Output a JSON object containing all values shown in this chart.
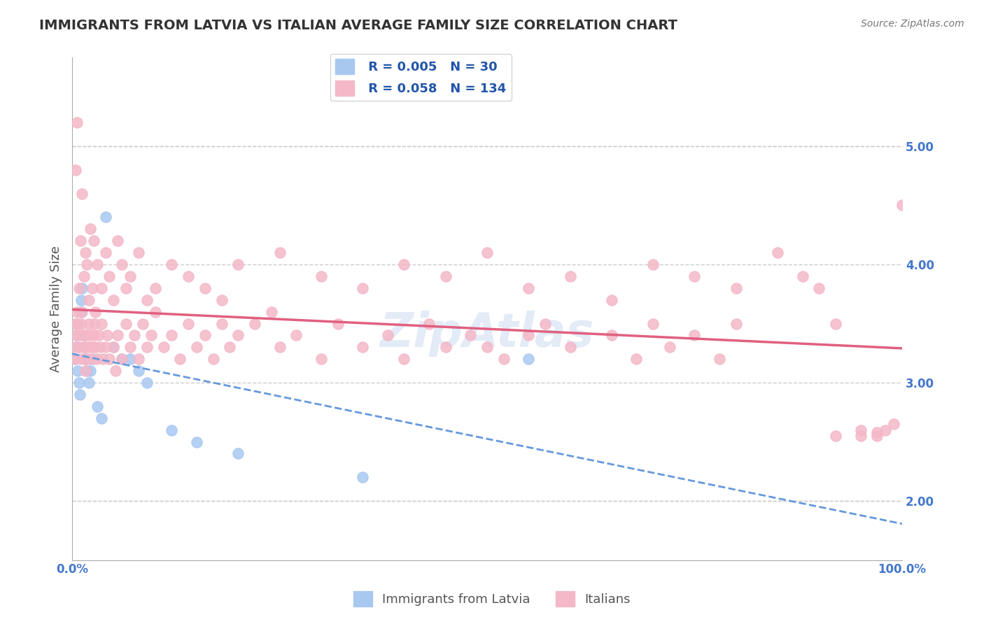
{
  "title": "IMMIGRANTS FROM LATVIA VS ITALIAN AVERAGE FAMILY SIZE CORRELATION CHART",
  "source": "Source: ZipAtlas.com",
  "xlabel": "",
  "ylabel": "Average Family Size",
  "xlim": [
    0,
    100
  ],
  "ylim": [
    1.5,
    5.75
  ],
  "yticks": [
    2.0,
    3.0,
    4.0,
    5.0
  ],
  "xtick_labels": [
    "0.0%",
    "100.0%"
  ],
  "series": [
    {
      "label": "Immigrants from Latvia",
      "R": 0.005,
      "N": 30,
      "color": "#a8c8f0",
      "line_color": "#4477cc",
      "line_style": "-",
      "x": [
        0.3,
        0.4,
        0.5,
        0.6,
        0.7,
        0.8,
        0.9,
        1.0,
        1.1,
        1.2,
        1.4,
        1.5,
        1.6,
        1.8,
        2.0,
        2.2,
        2.5,
        3.0,
        3.5,
        4.0,
        5.0,
        6.0,
        7.0,
        8.0,
        9.0,
        12.0,
        15.0,
        20.0,
        35.0,
        55.0
      ],
      "y": [
        3.2,
        3.5,
        3.4,
        3.3,
        3.1,
        3.0,
        2.9,
        3.6,
        3.7,
        3.8,
        3.4,
        3.3,
        3.2,
        3.1,
        3.0,
        3.1,
        3.2,
        2.8,
        2.7,
        4.4,
        3.3,
        3.2,
        3.2,
        3.1,
        3.0,
        2.6,
        2.5,
        2.4,
        2.2,
        3.2
      ]
    },
    {
      "label": "Italians",
      "R": 0.058,
      "N": 134,
      "color": "#f4b8c8",
      "line_color": "#e06080",
      "line_style": "-",
      "x": [
        0.2,
        0.3,
        0.4,
        0.5,
        0.6,
        0.7,
        0.8,
        0.9,
        1.0,
        1.1,
        1.2,
        1.3,
        1.4,
        1.5,
        1.6,
        1.7,
        1.8,
        1.9,
        2.0,
        2.1,
        2.2,
        2.3,
        2.5,
        2.6,
        2.7,
        2.8,
        3.0,
        3.2,
        3.4,
        3.5,
        3.7,
        4.0,
        4.2,
        4.5,
        5.0,
        5.2,
        5.5,
        6.0,
        6.5,
        7.0,
        7.5,
        8.0,
        8.5,
        9.0,
        9.5,
        10.0,
        11.0,
        12.0,
        13.0,
        14.0,
        15.0,
        16.0,
        17.0,
        18.0,
        19.0,
        20.0,
        22.0,
        24.0,
        25.0,
        27.0,
        30.0,
        32.0,
        35.0,
        38.0,
        40.0,
        43.0,
        45.0,
        48.0,
        50.0,
        52.0,
        55.0,
        57.0,
        60.0,
        65.0,
        68.0,
        70.0,
        72.0,
        75.0,
        78.0,
        80.0,
        0.4,
        0.6,
        0.8,
        1.0,
        1.2,
        1.4,
        1.6,
        1.8,
        2.0,
        2.2,
        2.4,
        2.6,
        2.8,
        3.0,
        3.5,
        4.0,
        4.5,
        5.0,
        5.5,
        6.0,
        6.5,
        7.0,
        8.0,
        9.0,
        10.0,
        12.0,
        14.0,
        16.0,
        18.0,
        20.0,
        25.0,
        30.0,
        35.0,
        40.0,
        45.0,
        50.0,
        55.0,
        60.0,
        65.0,
        70.0,
        75.0,
        80.0,
        85.0,
        88.0,
        90.0,
        92.0,
        95.0,
        97.0,
        99.0,
        100.0,
        95.0,
        98.0,
        92.0,
        97.0
      ],
      "y": [
        3.3,
        3.2,
        3.5,
        3.4,
        3.6,
        3.5,
        3.3,
        3.4,
        3.2,
        3.5,
        3.6,
        3.3,
        3.4,
        3.2,
        3.1,
        3.3,
        3.4,
        3.2,
        3.5,
        3.3,
        3.4,
        3.2,
        3.3,
        3.4,
        3.5,
        3.3,
        3.2,
        3.4,
        3.3,
        3.5,
        3.2,
        3.3,
        3.4,
        3.2,
        3.3,
        3.1,
        3.4,
        3.2,
        3.5,
        3.3,
        3.4,
        3.2,
        3.5,
        3.3,
        3.4,
        3.6,
        3.3,
        3.4,
        3.2,
        3.5,
        3.3,
        3.4,
        3.2,
        3.5,
        3.3,
        3.4,
        3.5,
        3.6,
        3.3,
        3.4,
        3.2,
        3.5,
        3.3,
        3.4,
        3.2,
        3.5,
        3.3,
        3.4,
        3.3,
        3.2,
        3.4,
        3.5,
        3.3,
        3.4,
        3.2,
        3.5,
        3.3,
        3.4,
        3.2,
        3.5,
        4.8,
        5.2,
        3.8,
        4.2,
        4.6,
        3.9,
        4.1,
        4.0,
        3.7,
        4.3,
        3.8,
        4.2,
        3.6,
        4.0,
        3.8,
        4.1,
        3.9,
        3.7,
        4.2,
        4.0,
        3.8,
        3.9,
        4.1,
        3.7,
        3.8,
        4.0,
        3.9,
        3.8,
        3.7,
        4.0,
        4.1,
        3.9,
        3.8,
        4.0,
        3.9,
        4.1,
        3.8,
        3.9,
        3.7,
        4.0,
        3.9,
        3.8,
        4.1,
        3.9,
        3.8,
        3.5,
        2.6,
        2.55,
        2.65,
        4.5,
        2.55,
        2.6,
        2.55,
        2.58
      ]
    }
  ],
  "grid_color": "#cccccc",
  "grid_style": "--",
  "background_color": "#ffffff",
  "title_color": "#333333",
  "axis_label_color": "#555555",
  "tick_color": "#4477cc",
  "source_color": "#777777",
  "legend_r_n_color": "#2255aa",
  "watermark_text": "ZipAtlas",
  "watermark_color": "#c8d8f0",
  "watermark_alpha": 0.5
}
